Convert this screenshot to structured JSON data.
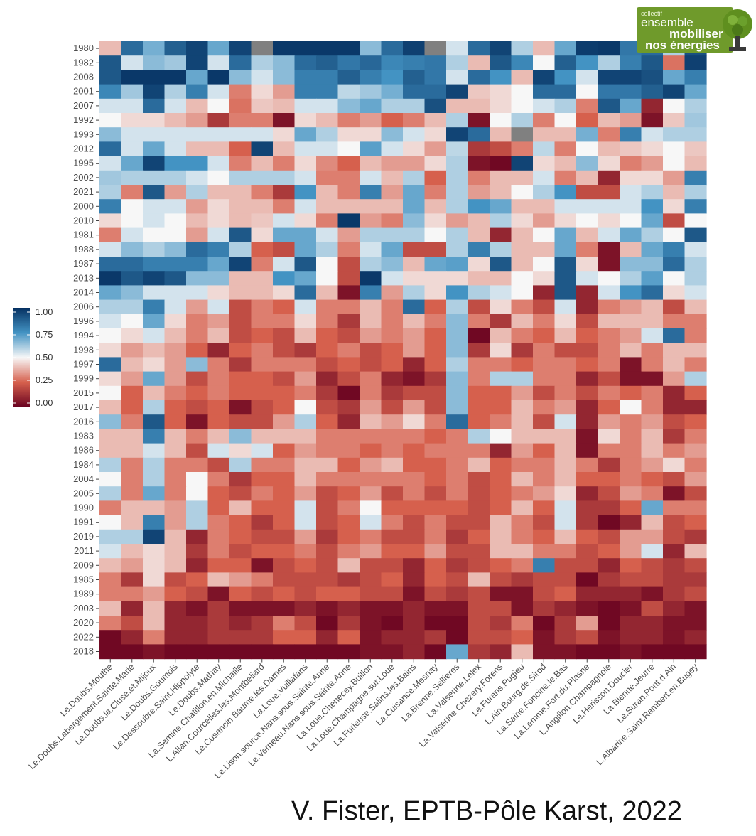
{
  "credit": "V. Fister, EPTB-Pôle Karst, 2022",
  "logo": {
    "line_small": "collectif",
    "line1": "ensemble",
    "line2": "mobiliser",
    "line3": "nos énergies",
    "color": "#6f9a2b"
  },
  "chart_data": {
    "type": "heatmap",
    "title": "",
    "xlabel": "",
    "ylabel": "",
    "color_scale": {
      "min": 0,
      "max": 1,
      "low_color": "#67001f",
      "mid_color": "#f7f7f7",
      "high_color": "#053061",
      "ticks": [
        "1.00",
        "0.75",
        "0.50",
        "0.25",
        "0.00"
      ]
    },
    "x": [
      "Le.Doubs.Mouthe",
      "Le.Doubs.Labergement.Sainte.Marie",
      "Le.Doubs.la.Cluse.et.Mijoux",
      "Le.Doubs.Goumois",
      "Le.Dessoubre.Saint.Hippolyte",
      "Le.Doubs.Mathay",
      "La.Semine.Chatillon.en.Michaille",
      "L.Allan.Courcelles.les.Montbeliard",
      "Le.Cusancin.Baume.les.Dames",
      "La.Loue.Vuillafans",
      "Le.Lison.source.Nans.sous.Sainte.Anne",
      "Le.Verneau.Nans.sous.Sainte.Anne",
      "La.Loue.Chenecey.Buillon",
      "La.Loue.Champagne.sur.Loue",
      "La.Furieuse.Salins.les.Bains",
      "La.Cuisance.Mesnay",
      "La.Brenne.Sellieres",
      "La.Valserine.Lelex",
      "La.Valserine.Chezery.Forens",
      "Le.Furans.Pugieu",
      "L.Ain.Bourg.de.Sirod",
      "La.Saine.Foncine.le.Bas",
      "La.Lemme.Fort.du.Plasne",
      "L.Angillon.Champagnole",
      "Le.Herisson.Doucier",
      "La.Bienne.Jeurre",
      "Le.Suran.Pont.d.Ain",
      "L.Albarine.Saint.Rambert.en.Bugey"
    ],
    "y": [
      "1980",
      "1982",
      "2008",
      "2001",
      "2007",
      "1992",
      "1993",
      "2012",
      "1995",
      "2002",
      "2021",
      "2000",
      "2010",
      "1981",
      "1988",
      "1987",
      "2013",
      "2014",
      "2006",
      "1996",
      "1994",
      "1998",
      "1997",
      "1999",
      "2015",
      "2017",
      "2016",
      "1983",
      "1986",
      "1984",
      "2004",
      "2005",
      "1990",
      "1991",
      "2019",
      "2011",
      "2009",
      "1985",
      "1989",
      "2003",
      "2020",
      "2022",
      "2018"
    ],
    "values": [
      [
        0.4,
        0.85,
        0.68,
        0.88,
        0.95,
        0.7,
        0.95,
        null,
        0.98,
        0.98,
        0.98,
        0.98,
        0.65,
        0.85,
        0.96,
        null,
        0.55,
        0.85,
        0.95,
        0.6,
        0.4,
        0.7,
        0.97,
        0.98,
        0.82,
        0.85,
        0.6,
        0.92
      ],
      [
        0.9,
        0.55,
        0.65,
        0.62,
        0.95,
        0.55,
        0.85,
        0.6,
        0.65,
        0.85,
        0.88,
        0.82,
        0.86,
        0.78,
        0.8,
        0.82,
        0.6,
        0.4,
        0.9,
        0.78,
        0.5,
        0.88,
        0.75,
        0.6,
        0.8,
        0.9,
        0.28,
        0.96
      ],
      [
        0.9,
        0.98,
        0.98,
        0.98,
        0.7,
        0.98,
        0.65,
        0.55,
        0.65,
        0.8,
        0.8,
        0.88,
        0.8,
        0.75,
        0.88,
        0.82,
        0.55,
        0.85,
        0.75,
        0.4,
        0.95,
        0.75,
        0.55,
        0.95,
        0.95,
        0.92,
        0.7,
        0.8
      ],
      [
        0.78,
        0.62,
        0.95,
        0.6,
        0.8,
        0.55,
        0.3,
        0.45,
        0.35,
        0.8,
        0.8,
        0.58,
        0.62,
        0.68,
        0.85,
        0.85,
        0.95,
        0.42,
        0.45,
        0.5,
        0.85,
        0.85,
        0.5,
        0.82,
        0.82,
        0.88,
        0.95,
        0.7
      ],
      [
        0.55,
        0.55,
        0.85,
        0.55,
        0.4,
        0.5,
        0.28,
        0.42,
        0.4,
        0.55,
        0.55,
        0.65,
        0.7,
        0.6,
        0.6,
        0.92,
        0.4,
        0.4,
        0.45,
        0.5,
        0.55,
        0.6,
        0.3,
        0.9,
        0.7,
        0.1,
        0.5,
        0.6
      ],
      [
        0.5,
        0.45,
        0.45,
        0.4,
        0.35,
        0.15,
        0.3,
        0.3,
        0.05,
        0.45,
        0.4,
        0.3,
        0.35,
        0.25,
        0.3,
        0.4,
        0.6,
        0.05,
        0.5,
        0.6,
        0.3,
        0.5,
        0.25,
        0.4,
        0.35,
        0.05,
        0.42,
        0.62
      ],
      [
        0.65,
        0.55,
        0.55,
        0.55,
        0.55,
        0.55,
        0.55,
        0.55,
        0.45,
        0.7,
        0.6,
        0.45,
        0.45,
        0.65,
        0.55,
        0.45,
        0.95,
        0.85,
        0.4,
        null,
        0.4,
        0.4,
        0.68,
        0.3,
        0.8,
        0.55,
        0.6,
        0.6
      ],
      [
        0.85,
        0.55,
        0.7,
        0.55,
        0.4,
        0.4,
        0.25,
        0.95,
        0.4,
        0.55,
        0.55,
        0.5,
        0.72,
        0.55,
        0.45,
        0.35,
        0.58,
        0.15,
        0.2,
        0.3,
        0.58,
        0.3,
        0.5,
        0.4,
        0.42,
        0.45,
        0.5,
        0.42
      ],
      [
        0.55,
        0.7,
        0.95,
        0.75,
        0.75,
        0.55,
        0.3,
        0.4,
        0.3,
        0.45,
        0.32,
        0.25,
        0.4,
        0.35,
        0.35,
        0.45,
        0.6,
        0.05,
        0.02,
        0.95,
        0.45,
        0.4,
        0.65,
        0.45,
        0.3,
        0.35,
        0.5,
        0.4
      ],
      [
        0.62,
        0.6,
        0.6,
        0.6,
        0.55,
        0.5,
        0.6,
        0.6,
        0.6,
        0.55,
        0.3,
        0.3,
        0.55,
        0.4,
        0.6,
        0.25,
        0.6,
        0.3,
        0.4,
        0.4,
        0.55,
        0.3,
        0.4,
        0.1,
        0.45,
        0.45,
        0.35,
        0.8
      ],
      [
        0.6,
        0.3,
        0.9,
        0.35,
        0.6,
        0.4,
        0.4,
        0.3,
        0.15,
        0.75,
        0.4,
        0.3,
        0.8,
        0.35,
        0.7,
        0.3,
        0.6,
        0.35,
        0.4,
        0.5,
        0.6,
        0.75,
        0.2,
        0.2,
        0.55,
        0.6,
        0.4,
        0.6
      ],
      [
        0.8,
        0.5,
        0.55,
        0.55,
        0.35,
        0.45,
        0.4,
        0.4,
        0.3,
        0.55,
        0.4,
        0.4,
        0.4,
        0.4,
        0.7,
        0.4,
        0.6,
        0.75,
        0.7,
        0.4,
        0.4,
        0.55,
        0.55,
        0.55,
        0.55,
        0.75,
        0.45,
        0.8
      ],
      [
        0.45,
        0.5,
        0.55,
        0.5,
        0.4,
        0.45,
        0.4,
        0.42,
        0.55,
        0.45,
        0.3,
        0.98,
        0.35,
        0.3,
        0.65,
        0.45,
        0.35,
        0.4,
        0.6,
        0.45,
        0.35,
        0.45,
        0.5,
        0.45,
        0.5,
        0.7,
        0.2,
        0.5
      ],
      [
        0.3,
        0.55,
        0.5,
        0.5,
        0.35,
        0.55,
        0.9,
        0.45,
        0.7,
        0.7,
        0.55,
        0.35,
        0.6,
        0.6,
        0.6,
        0.5,
        0.6,
        0.4,
        0.1,
        0.4,
        0.5,
        0.7,
        0.4,
        0.55,
        0.7,
        0.6,
        0.5,
        0.9
      ],
      [
        0.55,
        0.65,
        0.6,
        0.65,
        0.85,
        0.8,
        0.6,
        0.25,
        0.2,
        0.7,
        0.6,
        0.3,
        0.55,
        0.7,
        0.2,
        0.2,
        0.6,
        0.8,
        0.6,
        0.4,
        0.4,
        0.7,
        0.3,
        0.05,
        0.4,
        0.7,
        0.8,
        0.55
      ],
      [
        0.85,
        0.85,
        0.8,
        0.8,
        0.8,
        0.7,
        0.95,
        0.3,
        0.55,
        0.9,
        0.5,
        0.2,
        0.6,
        0.65,
        0.4,
        0.7,
        0.72,
        0.45,
        0.9,
        0.4,
        0.5,
        0.9,
        0.45,
        0.05,
        0.65,
        0.65,
        0.85,
        0.6
      ],
      [
        0.98,
        0.9,
        0.95,
        0.9,
        0.65,
        0.65,
        0.4,
        0.4,
        0.75,
        0.7,
        0.5,
        0.2,
        0.98,
        0.55,
        0.45,
        0.45,
        0.45,
        0.4,
        0.4,
        0.5,
        0.45,
        0.9,
        0.55,
        0.5,
        0.6,
        0.72,
        0.5,
        0.6
      ],
      [
        0.7,
        0.65,
        0.55,
        0.55,
        0.55,
        0.45,
        0.4,
        0.4,
        0.45,
        0.85,
        0.4,
        0.05,
        0.8,
        0.35,
        0.6,
        0.45,
        0.75,
        0.6,
        0.55,
        0.5,
        0.1,
        0.9,
        0.1,
        0.55,
        0.75,
        0.85,
        0.45,
        0.55
      ],
      [
        0.6,
        0.6,
        0.8,
        0.55,
        0.35,
        0.55,
        0.2,
        0.3,
        0.25,
        0.55,
        0.3,
        0.3,
        0.4,
        0.3,
        0.85,
        0.25,
        0.6,
        0.2,
        0.45,
        0.3,
        0.2,
        0.55,
        0.1,
        0.3,
        0.35,
        0.4,
        0.2,
        0.4
      ],
      [
        0.55,
        0.5,
        0.7,
        0.45,
        0.3,
        0.35,
        0.2,
        0.3,
        0.3,
        0.45,
        0.3,
        0.15,
        0.4,
        0.3,
        0.4,
        0.3,
        0.65,
        0.3,
        0.15,
        0.4,
        0.3,
        0.45,
        0.2,
        0.4,
        0.4,
        0.4,
        0.3,
        0.3
      ],
      [
        0.5,
        0.45,
        0.55,
        0.4,
        0.3,
        0.4,
        0.2,
        0.25,
        0.2,
        0.4,
        0.25,
        0.2,
        0.35,
        0.3,
        0.35,
        0.25,
        0.65,
        0.02,
        0.4,
        0.3,
        0.25,
        0.4,
        0.25,
        0.3,
        0.35,
        0.55,
        0.85,
        0.3
      ],
      [
        0.45,
        0.35,
        0.4,
        0.35,
        0.25,
        0.1,
        0.25,
        0.3,
        0.2,
        0.15,
        0.25,
        0.3,
        0.2,
        0.25,
        0.35,
        0.25,
        0.65,
        0.15,
        0.45,
        0.15,
        0.3,
        0.2,
        0.2,
        0.3,
        0.4,
        0.3,
        0.4,
        0.4
      ],
      [
        0.85,
        0.4,
        0.45,
        0.35,
        0.65,
        0.3,
        0.15,
        0.3,
        0.3,
        0.3,
        0.2,
        0.25,
        0.2,
        0.25,
        0.1,
        0.25,
        0.6,
        0.3,
        0.3,
        0.25,
        0.3,
        0.3,
        0.25,
        0.3,
        0.05,
        0.3,
        0.4,
        0.3
      ],
      [
        0.45,
        0.35,
        0.7,
        0.35,
        0.2,
        0.3,
        0.25,
        0.25,
        0.2,
        0.35,
        0.1,
        0.2,
        0.3,
        0.1,
        0.05,
        0.15,
        0.65,
        0.3,
        0.6,
        0.6,
        0.3,
        0.3,
        0.1,
        0.2,
        0.05,
        0.05,
        0.35,
        0.6
      ],
      [
        0.5,
        0.25,
        0.4,
        0.3,
        0.25,
        0.3,
        0.25,
        0.25,
        0.25,
        0.3,
        0.15,
        0.02,
        0.3,
        0.15,
        0.2,
        0.2,
        0.65,
        0.25,
        0.25,
        0.35,
        0.2,
        0.3,
        0.2,
        0.3,
        0.25,
        0.3,
        0.1,
        0.25
      ],
      [
        0.4,
        0.25,
        0.6,
        0.25,
        0.2,
        0.25,
        0.05,
        0.2,
        0.25,
        0.5,
        0.2,
        0.15,
        0.35,
        0.2,
        0.35,
        0.2,
        0.65,
        0.25,
        0.25,
        0.4,
        0.3,
        0.35,
        0.1,
        0.25,
        0.5,
        0.3,
        0.1,
        0.1
      ],
      [
        0.65,
        0.3,
        0.9,
        0.25,
        0.05,
        0.25,
        0.2,
        0.2,
        0.35,
        0.6,
        0.25,
        0.1,
        0.4,
        0.35,
        0.45,
        0.3,
        0.85,
        0.25,
        0.3,
        0.4,
        0.2,
        0.55,
        0.1,
        0.35,
        0.3,
        0.35,
        0.2,
        0.25
      ],
      [
        0.4,
        0.4,
        0.8,
        0.4,
        0.3,
        0.4,
        0.65,
        0.4,
        0.4,
        0.4,
        0.3,
        0.3,
        0.3,
        0.3,
        0.3,
        0.25,
        0.3,
        0.6,
        0.5,
        0.4,
        0.4,
        0.4,
        0.05,
        0.45,
        0.3,
        0.4,
        0.15,
        0.3
      ],
      [
        0.4,
        0.4,
        0.55,
        0.4,
        0.2,
        0.55,
        0.45,
        0.55,
        0.25,
        0.35,
        0.3,
        0.3,
        0.25,
        0.3,
        0.25,
        0.3,
        0.3,
        0.3,
        0.1,
        0.35,
        0.25,
        0.4,
        0.05,
        0.3,
        0.3,
        0.4,
        0.3,
        0.35
      ],
      [
        0.6,
        0.3,
        0.6,
        0.3,
        0.3,
        0.2,
        0.6,
        0.3,
        0.3,
        0.4,
        0.4,
        0.25,
        0.35,
        0.4,
        0.25,
        0.25,
        0.3,
        0.4,
        0.25,
        0.3,
        0.3,
        0.4,
        0.3,
        0.15,
        0.3,
        0.35,
        0.45,
        0.3
      ],
      [
        0.5,
        0.3,
        0.6,
        0.3,
        0.5,
        0.3,
        0.15,
        0.25,
        0.25,
        0.4,
        0.3,
        0.3,
        0.3,
        0.3,
        0.3,
        0.25,
        0.3,
        0.2,
        0.25,
        0.4,
        0.3,
        0.4,
        0.25,
        0.25,
        0.3,
        0.25,
        0.2,
        0.35
      ],
      [
        0.6,
        0.3,
        0.7,
        0.3,
        0.5,
        0.25,
        0.2,
        0.3,
        0.25,
        0.35,
        0.2,
        0.25,
        0.35,
        0.2,
        0.3,
        0.2,
        0.3,
        0.2,
        0.25,
        0.3,
        0.35,
        0.45,
        0.1,
        0.2,
        0.35,
        0.3,
        0.05,
        0.2
      ],
      [
        0.3,
        0.4,
        0.4,
        0.35,
        0.6,
        0.25,
        0.4,
        0.25,
        0.25,
        0.55,
        0.2,
        0.3,
        0.5,
        0.25,
        0.25,
        0.25,
        0.25,
        0.2,
        0.25,
        0.4,
        0.25,
        0.55,
        0.15,
        0.15,
        0.25,
        0.7,
        0.3,
        0.3
      ],
      [
        0.5,
        0.4,
        0.8,
        0.35,
        0.6,
        0.3,
        0.25,
        0.15,
        0.25,
        0.55,
        0.2,
        0.25,
        0.55,
        0.3,
        0.2,
        0.3,
        0.2,
        0.2,
        0.4,
        0.3,
        0.2,
        0.55,
        0.15,
        0.02,
        0.1,
        0.4,
        0.2,
        0.25
      ],
      [
        0.6,
        0.6,
        0.95,
        0.4,
        0.1,
        0.3,
        0.25,
        0.2,
        0.2,
        0.35,
        0.15,
        0.25,
        0.3,
        0.2,
        0.2,
        0.3,
        0.15,
        0.25,
        0.4,
        0.3,
        0.25,
        0.4,
        0.25,
        0.2,
        0.35,
        0.35,
        0.2,
        0.15
      ],
      [
        0.55,
        0.4,
        0.45,
        0.4,
        0.15,
        0.3,
        0.2,
        0.25,
        0.25,
        0.3,
        0.2,
        0.3,
        0.35,
        0.25,
        0.25,
        0.35,
        0.2,
        0.2,
        0.4,
        0.4,
        0.3,
        0.3,
        0.2,
        0.25,
        0.35,
        0.55,
        0.1,
        0.4
      ],
      [
        0.4,
        0.35,
        0.45,
        0.4,
        0.1,
        0.25,
        0.25,
        0.05,
        0.2,
        0.25,
        0.2,
        0.4,
        0.2,
        0.2,
        0.1,
        0.25,
        0.15,
        0.2,
        0.25,
        0.3,
        0.8,
        0.2,
        0.2,
        0.1,
        0.25,
        0.2,
        0.15,
        0.2
      ],
      [
        0.3,
        0.15,
        0.45,
        0.2,
        0.25,
        0.4,
        0.35,
        0.3,
        0.2,
        0.2,
        0.2,
        0.15,
        0.2,
        0.25,
        0.1,
        0.25,
        0.2,
        0.4,
        0.2,
        0.15,
        0.2,
        0.2,
        0.02,
        0.15,
        0.2,
        0.2,
        0.15,
        0.15
      ],
      [
        0.3,
        0.3,
        0.35,
        0.25,
        0.2,
        0.05,
        0.25,
        0.2,
        0.25,
        0.2,
        0.25,
        0.25,
        0.2,
        0.2,
        0.05,
        0.2,
        0.15,
        0.2,
        0.05,
        0.05,
        0.2,
        0.25,
        0.1,
        0.1,
        0.1,
        0.05,
        0.15,
        0.2
      ],
      [
        0.4,
        0.1,
        0.4,
        0.1,
        0.05,
        0.15,
        0.05,
        0.05,
        0.05,
        0.1,
        0.05,
        0.1,
        0.05,
        0.05,
        0.1,
        0.05,
        0.05,
        0.2,
        0.2,
        0.05,
        0.15,
        0.1,
        0.05,
        0.02,
        0.05,
        0.2,
        0.1,
        0.05
      ],
      [
        0.3,
        0.2,
        0.4,
        0.1,
        0.1,
        0.15,
        0.1,
        0.15,
        0.3,
        0.2,
        0.02,
        0.15,
        0.05,
        0.02,
        0.1,
        0.02,
        0.02,
        0.2,
        0.15,
        0.3,
        0.02,
        0.15,
        0.35,
        0.02,
        0.1,
        0.1,
        0.05,
        0.05
      ],
      [
        0.02,
        0.1,
        0.3,
        0.1,
        0.1,
        0.15,
        0.15,
        0.15,
        0.25,
        0.25,
        0.1,
        0.25,
        0.05,
        0.1,
        0.1,
        0.15,
        0.02,
        0.2,
        0.2,
        0.25,
        0.05,
        0.15,
        0.2,
        0.05,
        0.1,
        0.1,
        0.05,
        0.1
      ],
      [
        0.02,
        0.02,
        0.05,
        0.02,
        0.02,
        0.02,
        0.02,
        0.02,
        0.02,
        0.02,
        0.02,
        0.02,
        0.05,
        0.05,
        0.1,
        0.02,
        0.7,
        0.15,
        0.1,
        0.4,
        0.05,
        0.05,
        0.02,
        0.02,
        0.05,
        0.02,
        0.02,
        0.02
      ]
    ]
  }
}
